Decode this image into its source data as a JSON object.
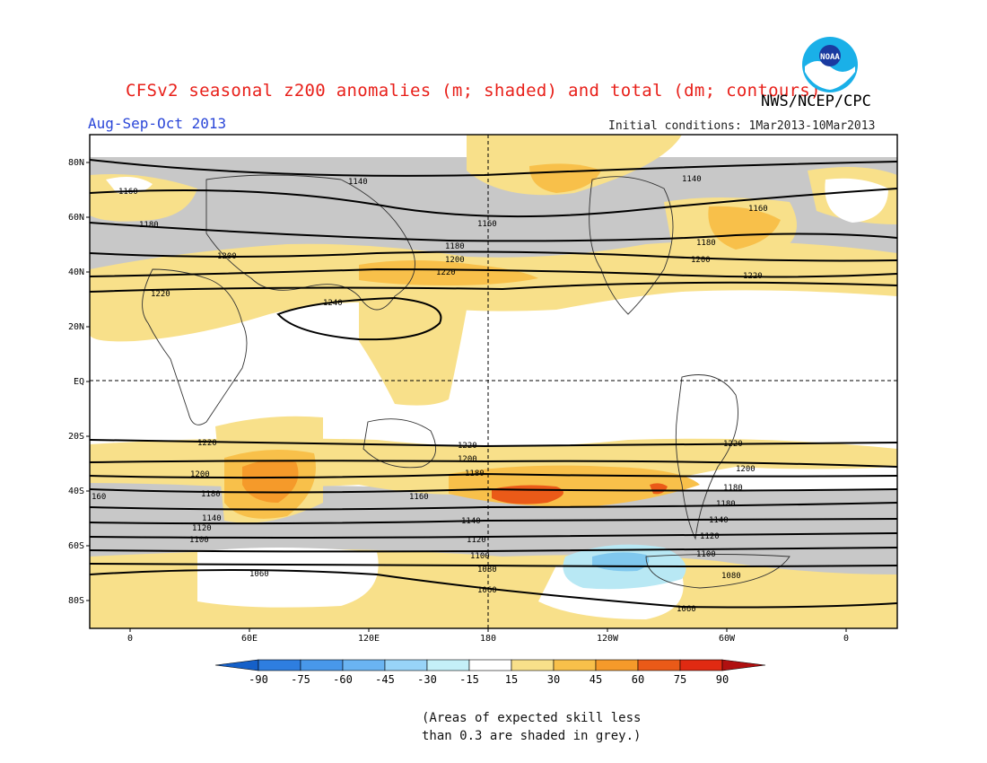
{
  "header": {
    "title": "CFSv2 seasonal z200 anomalies (m; shaded) and total (dm; contours)",
    "agency": "NWS/NCEP/CPC",
    "period": "Aug-Sep-Oct 2013",
    "initial_conditions": "Initial conditions: 1Mar2013-10Mar2013",
    "logo_text": "NOAA"
  },
  "map": {
    "lat_labels": [
      "80N",
      "60N",
      "40N",
      "20N",
      "EQ",
      "20S",
      "40S",
      "60S",
      "80S"
    ],
    "lon_labels": [
      "0",
      "60E",
      "120E",
      "180",
      "120W",
      "60W",
      "0"
    ],
    "contour_labels": [
      "1140",
      "1160",
      "1180",
      "1200",
      "1220",
      "1240",
      "1060",
      "1080",
      "1100",
      "1120",
      "1140",
      "1160",
      "1180",
      "1200",
      "1220",
      "160"
    ],
    "colors": {
      "grey": "#c8c8c8",
      "yellow": "#f8e08a",
      "light_orange": "#f8c04a",
      "orange": "#f59a2a",
      "red_orange": "#ea5a18",
      "light_blue": "#b8e8f4",
      "mid_blue": "#80c8ee"
    }
  },
  "colorbar": {
    "ticks": [
      "-90",
      "-75",
      "-60",
      "-45",
      "-30",
      "-15",
      "15",
      "30",
      "45",
      "60",
      "75",
      "90"
    ],
    "colors": [
      "#1560c8",
      "#2e7ee0",
      "#4898ea",
      "#6ab4f2",
      "#98d4f8",
      "#c4f0f8",
      "#ffffff",
      "#f8e08a",
      "#f8c04a",
      "#f59a2a",
      "#ea5a18",
      "#e02a12",
      "#b01010"
    ]
  },
  "note": {
    "line1": "(Areas of expected skill less",
    "line2": "than 0.3 are shaded in grey.)"
  }
}
